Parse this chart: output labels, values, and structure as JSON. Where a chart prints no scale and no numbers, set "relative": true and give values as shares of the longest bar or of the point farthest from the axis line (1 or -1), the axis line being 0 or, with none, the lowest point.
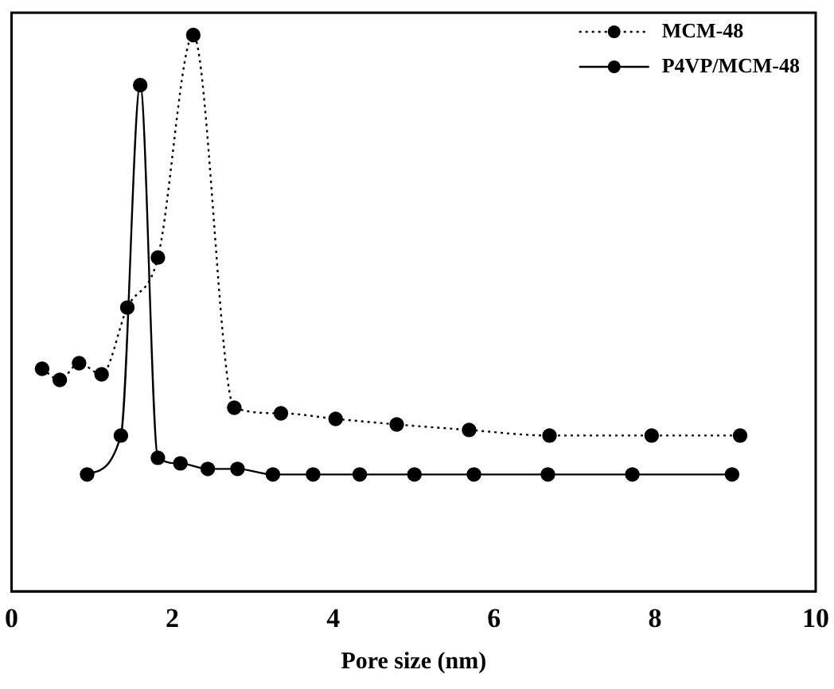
{
  "chart_data": {
    "type": "line",
    "xlabel": "Pore size (nm)",
    "relative": true,
    "xlim": [
      0,
      10
    ],
    "xticks": [
      0,
      2,
      4,
      6,
      8,
      10
    ],
    "legend": "top right",
    "marker": "circle",
    "grid": false,
    "series": [
      {
        "name": "MCM-48",
        "color": "#000000",
        "line_style": "dotted",
        "x": [
          0.38,
          0.6,
          0.84,
          1.12,
          1.44,
          1.82,
          2.26,
          2.77,
          3.35,
          4.03,
          4.79,
          5.69,
          6.69,
          7.96,
          9.06
        ],
        "values": [
          0.4,
          0.38,
          0.41,
          0.39,
          0.51,
          0.6,
          1,
          0.33,
          0.32,
          0.31,
          0.3,
          0.29,
          0.28,
          0.28,
          0.28
        ]
      },
      {
        "name": "P4VP/MCM-48",
        "color": "#000000",
        "line_style": "solid",
        "x": [
          0.94,
          1.36,
          1.6,
          1.82,
          2.1,
          2.44,
          2.81,
          3.25,
          3.75,
          4.33,
          5.01,
          5.75,
          6.67,
          7.72,
          8.96
        ],
        "values": [
          0.21,
          0.28,
          0.91,
          0.24,
          0.23,
          0.22,
          0.22,
          0.21,
          0.21,
          0.21,
          0.21,
          0.21,
          0.21,
          0.21,
          0.21
        ]
      }
    ]
  }
}
